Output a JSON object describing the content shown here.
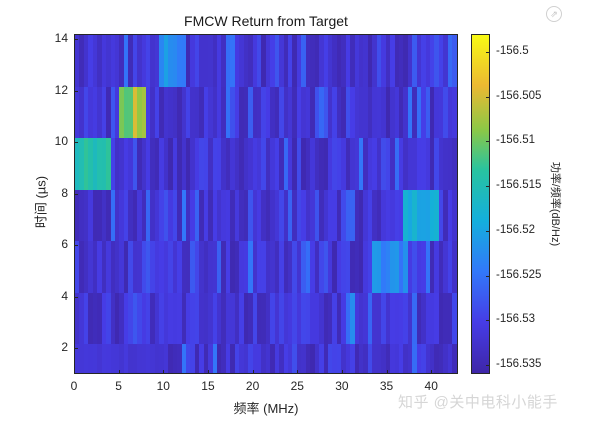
{
  "chart_data": {
    "type": "heatmap",
    "title": "FMCW Return from Target",
    "xlabel": "频率 (MHz)",
    "ylabel": "时间 (µs)",
    "xlim": [
      0,
      43
    ],
    "ylim": [
      1,
      14.2
    ],
    "xticks": [
      "0",
      "5",
      "10",
      "15",
      "20",
      "25",
      "30",
      "35",
      "40"
    ],
    "yticks": [
      "2",
      "4",
      "6",
      "8",
      "10",
      "12",
      "14"
    ],
    "colorbar": {
      "label": "功率/频率(dB/Hz)",
      "ticks": [
        "-156.5",
        "-156.505",
        "-156.51",
        "-156.515",
        "-156.52",
        "-156.525",
        "-156.53",
        "-156.535"
      ],
      "range": [
        -156.536,
        -156.498
      ],
      "colormap": "parula"
    },
    "bands": [
      {
        "t_range": [
          12.2,
          14.2
        ],
        "peak_mhz": [
          9.5,
          12.5
        ],
        "peak_value": -156.52
      },
      {
        "t_range": [
          10.2,
          12.2
        ],
        "peak_mhz": [
          5,
          8
        ],
        "peak_value": -156.501
      },
      {
        "t_range": [
          8.2,
          10.2
        ],
        "peak_mhz": [
          0,
          4
        ],
        "peak_value": -156.509
      },
      {
        "t_range": [
          6.2,
          8.2
        ],
        "peak_mhz": [
          37,
          41
        ],
        "peak_value": -156.517
      },
      {
        "t_range": [
          4.2,
          6.2
        ],
        "peak_mhz": [
          33.5,
          37.5
        ],
        "peak_value": -156.521
      },
      {
        "t_range": [
          2.2,
          4.2
        ],
        "peak_mhz": [
          30.5,
          31.5
        ],
        "peak_value": -156.522
      },
      {
        "t_range": [
          1.0,
          2.2
        ],
        "peak_mhz": [
          0,
          10
        ],
        "peak_value": -156.531
      }
    ]
  },
  "export_button": {
    "icon": "export-arrow-icon",
    "glyph": "⇗"
  },
  "watermark": "知乎 @关中电科小能手"
}
